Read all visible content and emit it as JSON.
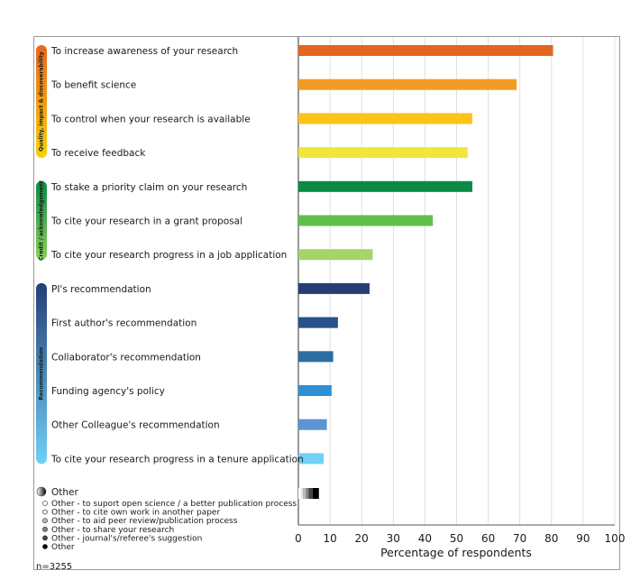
{
  "chart_data": {
    "type": "bar",
    "orientation": "horizontal",
    "xlabel": "Percentage of respondents",
    "xlim": [
      0,
      100
    ],
    "x_ticks": [
      0,
      10,
      20,
      30,
      40,
      50,
      60,
      70,
      80,
      90,
      100
    ],
    "grid": "vertical",
    "groups": [
      {
        "name": "Quality, impact & discoverability",
        "color": "#e9661d",
        "color_end": "#f5d20a"
      },
      {
        "name": "Credit / acknowledgement",
        "color": "#0a8a44",
        "color_end": "#8ccf5a"
      },
      {
        "name": "Recommendation",
        "color": "#253f76",
        "color_end": "#6fd0f7"
      }
    ],
    "categories": [
      "To increase awareness of your research",
      "To benefit science",
      "To control when your research is available",
      "To receive feedback",
      "To stake a priority claim on your research",
      "To cite your research in a grant proposal",
      "To cite your research progress in a job application",
      "PI's recommendation",
      "First author's recommendation",
      "Collaborator's recommendation",
      "Funding agency's policy",
      "Other Colleague's recommendation",
      "To cite your research progress in a tenure application",
      "Other"
    ],
    "values": [
      80.5,
      69,
      55,
      53.5,
      55,
      42.5,
      23.5,
      22.5,
      12.5,
      11,
      10.5,
      9,
      8,
      6.5
    ],
    "colors": [
      "#e2661f",
      "#f39a25",
      "#fcc419",
      "#f2e63a",
      "#0a8a44",
      "#5fbf4b",
      "#a6d469",
      "#263f73",
      "#28508a",
      "#2a6ea3",
      "#2f8fd3",
      "#5b95d3",
      "#72d0f5",
      "#111111"
    ],
    "other_breakdown": [
      {
        "label": "Other - to suport open science / a better publication process",
        "value": 0.8,
        "color": "#ffffff"
      },
      {
        "label": "Other - to cite own work in another paper",
        "value": 0.6,
        "color": "#e6e6e6"
      },
      {
        "label": "Other - to aid peer review/publication process",
        "value": 1.0,
        "color": "#b8b8b8"
      },
      {
        "label": "Other - to share your research",
        "value": 0.8,
        "color": "#808080"
      },
      {
        "label": "Other - journal's/referee's suggestion",
        "value": 1.3,
        "color": "#444444"
      },
      {
        "label": "Other",
        "value": 2.0,
        "color": "#000000"
      }
    ],
    "note": "n=3255"
  }
}
